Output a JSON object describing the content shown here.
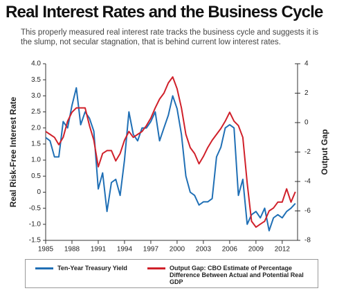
{
  "chart_data": {
    "type": "line",
    "title": "Real Interest Rates and the Business Cycle",
    "subtitle": "This properly measured real interest rate tracks the business cycle and suggests it is the slump, not secular stagnation, that is behind current low interest rates.",
    "y_label": "Real Risk-Free Interest Rate",
    "y2_label": "Output Gap",
    "x": [
      1985,
      1985.5,
      1986,
      1986.5,
      1987,
      1987.5,
      1988,
      1988.5,
      1989,
      1989.5,
      1990,
      1990.5,
      1991,
      1991.5,
      1992,
      1992.5,
      1993,
      1993.5,
      1994,
      1994.5,
      1995,
      1995.5,
      1996,
      1996.5,
      1997,
      1997.5,
      1998,
      1998.5,
      1999,
      1999.5,
      2000,
      2000.5,
      2001,
      2001.5,
      2002,
      2002.5,
      2003,
      2003.5,
      2004,
      2004.5,
      2005,
      2005.5,
      2006,
      2006.5,
      2007,
      2007.5,
      2008,
      2008.5,
      2009,
      2009.5,
      2010,
      2010.5,
      2011,
      2011.5,
      2012,
      2012.5,
      2013,
      2013.5
    ],
    "series": [
      {
        "name": "Ten-Year Treasury Yield",
        "color": "#1f6fb5",
        "axis": "y",
        "values": [
          1.7,
          1.6,
          1.1,
          1.1,
          2.2,
          2.0,
          2.7,
          3.25,
          2.1,
          2.5,
          2.3,
          1.9,
          0.1,
          0.6,
          -0.6,
          0.3,
          0.4,
          -0.1,
          1.0,
          2.5,
          1.8,
          1.6,
          2.0,
          2.0,
          2.2,
          2.5,
          1.6,
          2.0,
          2.4,
          3.0,
          2.6,
          1.8,
          0.5,
          0.0,
          -0.1,
          -0.4,
          -0.3,
          -0.3,
          -0.2,
          1.1,
          1.4,
          2.0,
          2.1,
          2.0,
          -0.1,
          0.4,
          -1.0,
          -0.7,
          -0.6,
          -0.8,
          -0.5,
          -1.2,
          -0.8,
          -0.7,
          -0.8,
          -0.6,
          -0.5,
          -0.35
        ]
      },
      {
        "name": "Output Gap: CBO Estimate of Percentage Difference Between Actual and Potential Real GDP",
        "color": "#d0202a",
        "axis": "y2",
        "values": [
          -0.6,
          -0.8,
          -1.0,
          -1.5,
          -1.0,
          0.1,
          0.7,
          1.0,
          1.0,
          1.0,
          -0.2,
          -1.2,
          -3.0,
          -2.1,
          -1.9,
          -1.9,
          -2.6,
          -2.1,
          -1.2,
          -0.6,
          -1.0,
          -0.8,
          -0.6,
          -0.2,
          0.3,
          1.0,
          1.6,
          2.0,
          2.7,
          3.1,
          2.3,
          1.0,
          -0.8,
          -1.7,
          -2.1,
          -2.8,
          -2.3,
          -1.7,
          -1.2,
          -0.8,
          -0.4,
          0.1,
          0.7,
          0.1,
          -0.2,
          -1.0,
          -4.1,
          -6.7,
          -7.1,
          -6.9,
          -6.7,
          -6.0,
          -5.8,
          -5.4,
          -5.4,
          -4.5,
          -5.4,
          -4.7
        ]
      }
    ],
    "xlim": [
      1985,
      2013.75
    ],
    "xticks": [
      1985,
      1988,
      1991,
      1994,
      1997,
      2000,
      2003,
      2006,
      2009,
      2012
    ],
    "ylim": [
      -1.5,
      4
    ],
    "yticks": [
      {
        "value": -1.5,
        "label": "-1.5"
      },
      {
        "value": -1,
        "label": "-1.0"
      },
      -0.5,
      0,
      0.5,
      {
        "value": 1,
        "label": "1.0"
      },
      1.5,
      {
        "value": 2,
        "label": "2.0"
      },
      2.5,
      {
        "value": 3,
        "label": "3.0"
      },
      3.5,
      {
        "value": 4,
        "label": "4.0"
      }
    ],
    "y2lim": [
      -8,
      4
    ],
    "y2ticks": [
      -8,
      -6,
      -4,
      -2,
      0,
      2,
      4
    ],
    "legend": "bottom"
  }
}
